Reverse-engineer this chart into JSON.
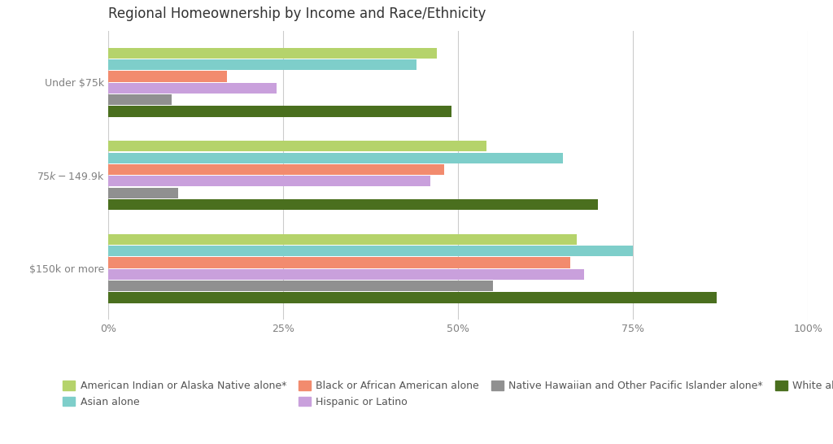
{
  "title": "Regional Homeownership by Income and Race/Ethnicity",
  "income_groups": [
    "Under $75k",
    "$75k-$149.9k",
    "$150k or more"
  ],
  "categories": [
    "American Indian or Alaska Native alone*",
    "Asian alone",
    "Black or African American alone",
    "Hispanic or Latino",
    "Native Hawaiian and Other Pacific Islander alone*",
    "White alone"
  ],
  "colors": [
    "#b5d36b",
    "#7ececa",
    "#f28b6e",
    "#c9a0dc",
    "#909090",
    "#4a6f1e"
  ],
  "values": {
    "Under $75k": [
      47,
      44,
      17,
      24,
      9,
      49
    ],
    "$75k-$149.9k": [
      54,
      65,
      48,
      46,
      10,
      70
    ],
    "$150k or more": [
      67,
      75,
      66,
      68,
      55,
      87
    ]
  },
  "xlim": [
    0,
    100
  ],
  "xticks": [
    0,
    25,
    50,
    75,
    100
  ],
  "xticklabels": [
    "0%",
    "25%",
    "50%",
    "75%",
    "100%"
  ],
  "background_color": "#ffffff",
  "grid_color": "#cccccc",
  "title_fontsize": 12
}
